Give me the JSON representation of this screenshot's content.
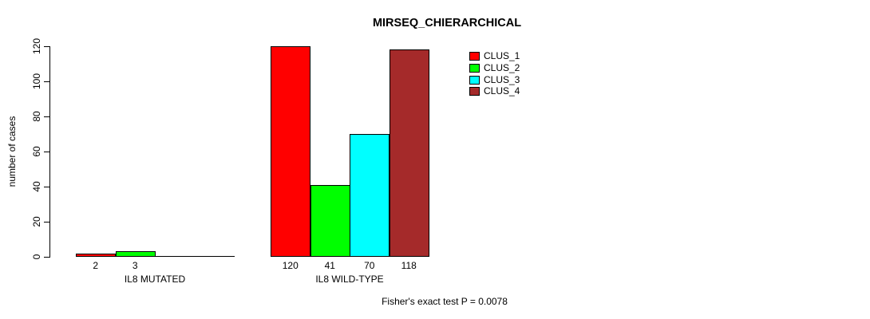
{
  "chart_data": {
    "type": "bar",
    "title": "MIRSEQ_CHIERARCHICAL",
    "ylabel": "number of cases",
    "xlabel": "",
    "ylim": [
      0,
      120
    ],
    "yticks": [
      0,
      20,
      40,
      60,
      80,
      100,
      120
    ],
    "grid": false,
    "legend_position": "top-right-inside",
    "categories": [
      "IL8 MUTATED",
      "IL8 WILD-TYPE"
    ],
    "series": [
      {
        "name": "CLUS_1",
        "color": "#ff0000",
        "values": [
          2,
          120
        ]
      },
      {
        "name": "CLUS_2",
        "color": "#00ff00",
        "values": [
          3,
          41
        ]
      },
      {
        "name": "CLUS_3",
        "color": "#00ffff",
        "values": [
          0,
          70
        ]
      },
      {
        "name": "CLUS_4",
        "color": "#a52a2a",
        "values": [
          0,
          118
        ]
      }
    ],
    "bar_value_labels": [
      [
        "2",
        "3",
        "",
        ""
      ],
      [
        "120",
        "41",
        "70",
        "118"
      ]
    ],
    "annotation": "Fisher's exact test P = 0.0078"
  }
}
